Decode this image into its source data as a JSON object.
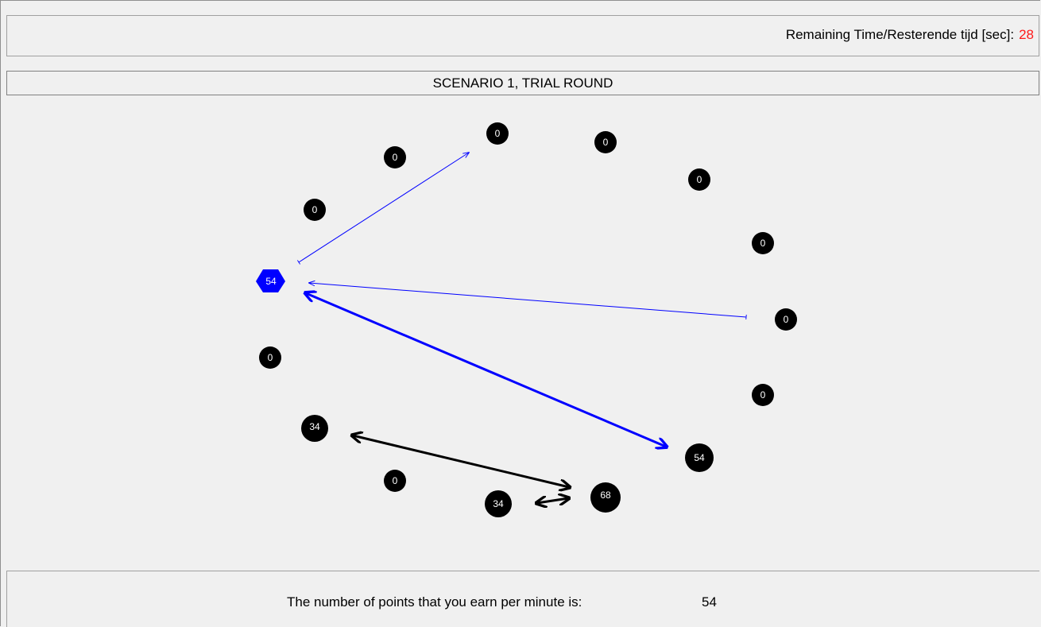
{
  "timer": {
    "label": "Remaining Time/Resterende tijd [sec]:",
    "value": "28",
    "value_color": "#ff1a1a"
  },
  "scenario": {
    "title": "SCENARIO 1, TRIAL ROUND"
  },
  "network": {
    "own_node_color": "#0000ff",
    "other_node_color": "#000000",
    "link_color_own": "#0000ff",
    "link_color_other": "#000000",
    "nodes": [
      {
        "id": "self",
        "points": "54",
        "shape": "hexagon"
      },
      {
        "id": "n1",
        "points": "0",
        "shape": "circle"
      },
      {
        "id": "n2",
        "points": "0",
        "shape": "circle"
      },
      {
        "id": "n3",
        "points": "0",
        "shape": "circle"
      },
      {
        "id": "n4",
        "points": "0",
        "shape": "circle"
      },
      {
        "id": "n5",
        "points": "0",
        "shape": "circle"
      },
      {
        "id": "n6",
        "points": "0",
        "shape": "circle"
      },
      {
        "id": "n7",
        "points": "0",
        "shape": "circle"
      },
      {
        "id": "n8",
        "points": "0",
        "shape": "circle"
      },
      {
        "id": "n9",
        "points": "54",
        "shape": "circle"
      },
      {
        "id": "n10",
        "points": "68",
        "shape": "circle"
      },
      {
        "id": "n11",
        "points": "34",
        "shape": "circle"
      },
      {
        "id": "n12",
        "points": "0",
        "shape": "circle"
      },
      {
        "id": "n13",
        "points": "34",
        "shape": "circle"
      },
      {
        "id": "n14",
        "points": "0",
        "shape": "circle"
      }
    ]
  },
  "footer": {
    "points_label": "The number of points that you earn per minute is:",
    "points_value": "54"
  }
}
